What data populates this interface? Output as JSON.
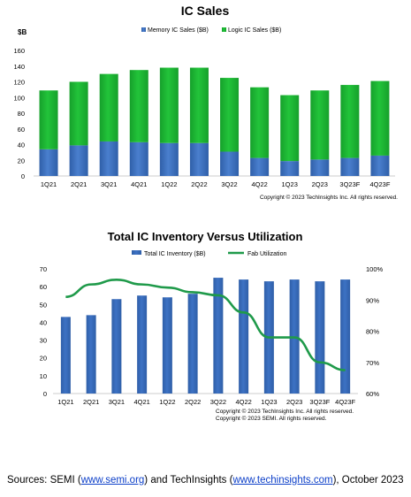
{
  "colors": {
    "memory": "#4a7fce",
    "memory_dark": "#2f5fa8",
    "logic": "#22c43a",
    "logic_dark": "#16a02b",
    "inventory": "#3d72c4",
    "utilization": "#1f9a4a"
  },
  "chart_data": [
    {
      "type": "bar",
      "stacked": true,
      "title": "IC Sales",
      "ylabel": "$B",
      "categories": [
        "1Q21",
        "2Q21",
        "3Q21",
        "4Q21",
        "1Q22",
        "2Q22",
        "3Q22",
        "4Q22",
        "1Q23",
        "2Q23",
        "3Q23F",
        "4Q23F"
      ],
      "series": [
        {
          "name": "Memory IC Sales ($B)",
          "values": [
            34,
            39,
            44,
            43,
            42,
            42,
            31,
            23,
            19,
            21,
            23,
            26
          ]
        },
        {
          "name": "Logic IC Sales ($B)",
          "values": [
            75,
            81,
            86,
            92,
            96,
            96,
            94,
            90,
            84,
            88,
            93,
            95
          ]
        }
      ],
      "ylim": [
        0,
        160
      ],
      "yticks": [
        0,
        20,
        40,
        60,
        80,
        100,
        120,
        140,
        160
      ],
      "legend": "top",
      "copyright": "Copyright © 2023 TechInsights Inc.  All rights reserved."
    },
    {
      "type": "bar-line",
      "title": "Total IC Inventory Versus Utilization",
      "categories": [
        "1Q21",
        "2Q21",
        "3Q21",
        "4Q21",
        "1Q22",
        "2Q22",
        "3Q22",
        "4Q22",
        "1Q23",
        "2Q23",
        "3Q23F",
        "4Q23F"
      ],
      "series": [
        {
          "name": "Total IC Inventory ($B)",
          "type": "bar",
          "axis": "left",
          "values": [
            43,
            44,
            53,
            55,
            54,
            56,
            65,
            64,
            63,
            64,
            63,
            64
          ]
        },
        {
          "name": "Fab Utilization",
          "type": "line",
          "axis": "right",
          "values": [
            91,
            95,
            96.5,
            95,
            94,
            92.5,
            91.5,
            86,
            78,
            78,
            70,
            67.5
          ]
        }
      ],
      "ylim_left": [
        0,
        70
      ],
      "yticks_left": [
        0,
        10,
        20,
        30,
        40,
        50,
        60,
        70
      ],
      "ylim_right": [
        60,
        100
      ],
      "yticks_right": [
        "60%",
        "70%",
        "80%",
        "90%",
        "100%"
      ],
      "legend": "top",
      "copyright": [
        "Copyright © 2023 TechInsights Inc.  All rights reserved.",
        "Copyright © 2023 SEMI.  All rights reserved."
      ]
    }
  ],
  "sources": {
    "prefix": "Sources:  SEMI  (",
    "semi_link": "www.semi.org",
    "mid": ") and TechInsights  (",
    "ti_link": "www.techinsights.com",
    "suffix": "), October  2023"
  }
}
